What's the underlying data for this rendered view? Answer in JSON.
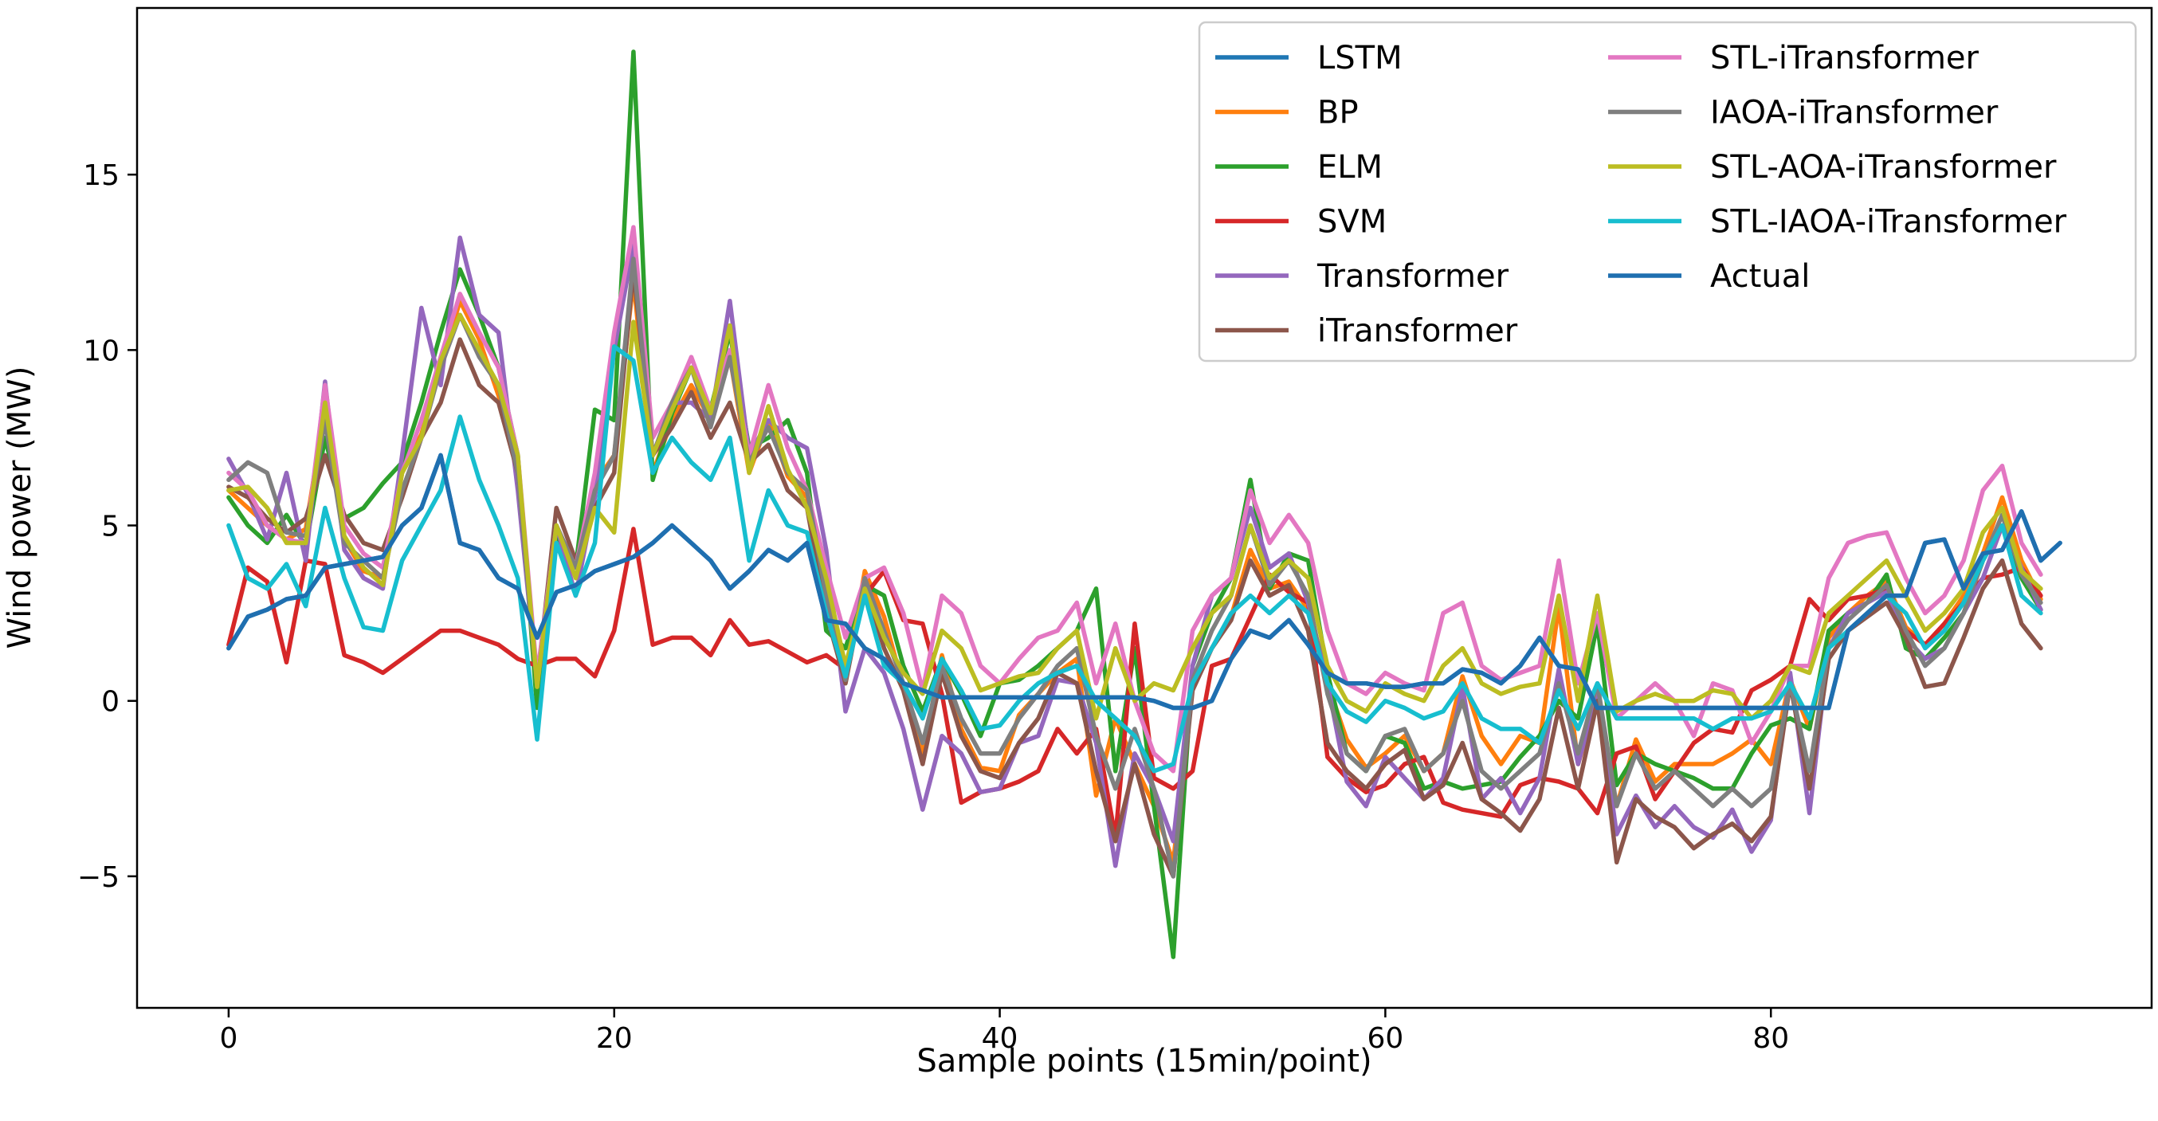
{
  "chart_data": {
    "type": "line",
    "title": "",
    "xlabel": "Sample points (15min/point)",
    "ylabel": "Wind power (MW)",
    "xlim": [
      -4.75,
      99.75
    ],
    "ylim": [
      -8.75,
      19.75
    ],
    "xticks": [
      0,
      20,
      40,
      60,
      80
    ],
    "yticks": [
      -5,
      0,
      5,
      10,
      15
    ],
    "xtick_labels": [
      "0",
      "20",
      "40",
      "60",
      "80"
    ],
    "ytick_labels": [
      "−5",
      "0",
      "5",
      "10",
      "15"
    ],
    "legend_position": "top-right",
    "legend_columns": 2,
    "series": [
      {
        "name": "LSTM",
        "color": "#1f77b4",
        "y": [
          1.5,
          2.4,
          2.6,
          2.9,
          3.0,
          3.8,
          3.9,
          4.0,
          4.1,
          5.0,
          5.5,
          7.0,
          4.5,
          4.3,
          3.5,
          3.2,
          1.8,
          3.1,
          3.3,
          3.7,
          3.9,
          4.1,
          4.5,
          5.0,
          4.5,
          4.0,
          3.2,
          3.7,
          4.3,
          4.0,
          4.5,
          2.3,
          2.2,
          1.5,
          1.2,
          0.5,
          0.3,
          0.1,
          0.1,
          0.1,
          0.1,
          0.1,
          0.1,
          0.1,
          0.1,
          0.1,
          0.1,
          0.1,
          0.0,
          -0.2,
          -0.2,
          0.0,
          1.2,
          2.0,
          1.8,
          2.3,
          1.6,
          0.8,
          0.5,
          0.5,
          0.4,
          0.4,
          0.5,
          0.5,
          0.9,
          0.8,
          0.5,
          1.0,
          1.8,
          1.0,
          0.9,
          -0.2,
          -0.2,
          -0.2,
          -0.2,
          -0.2,
          -0.2,
          -0.2,
          -0.2,
          -0.2,
          -0.2,
          -0.2,
          -0.2,
          -0.2,
          2.0,
          2.5,
          3.0,
          3.0,
          4.5,
          4.6,
          3.2,
          4.2,
          4.3,
          5.4,
          4.0,
          4.5
        ]
      },
      {
        "name": "BP",
        "color": "#ff7f0e",
        "y": [
          6.0,
          5.5,
          5.0,
          4.6,
          4.9,
          8.4,
          4.6,
          3.7,
          3.5,
          6.5,
          7.6,
          9.5,
          11.4,
          10.3,
          8.7,
          6.8,
          0.5,
          4.8,
          3.8,
          6.2,
          7.0,
          12.0,
          6.5,
          8.0,
          9.0,
          8.0,
          9.8,
          6.5,
          8.0,
          6.4,
          5.8,
          2.8,
          0.6,
          3.7,
          2.4,
          0.4,
          -1.5,
          1.3,
          -0.8,
          -1.9,
          -2.0,
          -0.4,
          0.2,
          0.8,
          1.2,
          -2.7,
          -0.5,
          -1.8,
          -3.0,
          -4.6,
          0.5,
          1.5,
          2.4,
          4.3,
          3.2,
          3.4,
          2.6,
          0.5,
          -1.1,
          -1.9,
          -1.5,
          -1.0,
          -2.0,
          -1.5,
          0.7,
          -1.0,
          -1.8,
          -1.0,
          -1.2,
          2.7,
          -1.8,
          0.0,
          -3.0,
          -1.1,
          -2.3,
          -1.8,
          -1.8,
          -1.8,
          -1.5,
          -1.1,
          -1.8,
          0.6,
          -0.8,
          1.8,
          2.5,
          3.0,
          3.4,
          2.1,
          1.6,
          2.2,
          3.0,
          4.2,
          5.8,
          4.0,
          2.9
        ]
      },
      {
        "name": "ELM",
        "color": "#2ca02c",
        "y": [
          5.8,
          5.0,
          4.5,
          5.3,
          4.4,
          7.5,
          5.2,
          5.5,
          6.2,
          6.8,
          8.5,
          10.5,
          12.3,
          11.0,
          9.5,
          7.0,
          -0.2,
          4.7,
          3.8,
          8.3,
          8.0,
          18.5,
          6.3,
          8.2,
          9.5,
          8.3,
          10.5,
          7.2,
          7.5,
          8.0,
          6.5,
          2.0,
          1.5,
          3.3,
          3.0,
          1.0,
          -0.3,
          1.2,
          0.2,
          -1.0,
          0.5,
          0.6,
          1.0,
          1.5,
          2.0,
          3.2,
          -2.0,
          1.5,
          -3.0,
          -7.3,
          1.0,
          2.5,
          3.5,
          6.3,
          3.2,
          4.2,
          4.0,
          0.8,
          -1.5,
          -2.0,
          -1.0,
          -1.2,
          -2.5,
          -2.3,
          -2.5,
          -2.4,
          -2.3,
          -1.6,
          -1.0,
          0.0,
          -0.5,
          2.2,
          -2.4,
          -1.5,
          -1.8,
          -2.0,
          -2.2,
          -2.5,
          -2.5,
          -1.5,
          -0.7,
          -0.5,
          -0.8,
          2.0,
          2.5,
          2.8,
          3.6,
          1.5,
          1.2,
          1.8,
          2.5,
          4.0,
          5.0,
          3.5,
          2.6
        ]
      },
      {
        "name": "SVM",
        "color": "#d62728",
        "y": [
          1.6,
          3.8,
          3.4,
          1.1,
          4.0,
          3.9,
          1.3,
          1.1,
          0.8,
          1.2,
          1.6,
          2.0,
          2.0,
          1.8,
          1.6,
          1.2,
          1.0,
          1.2,
          1.2,
          0.7,
          2.0,
          4.9,
          1.6,
          1.8,
          1.8,
          1.3,
          2.3,
          1.6,
          1.7,
          1.4,
          1.1,
          1.3,
          0.9,
          3.0,
          3.7,
          2.3,
          2.2,
          0.2,
          -2.9,
          -2.6,
          -2.5,
          -2.3,
          -2.0,
          -0.8,
          -1.5,
          -0.8,
          -3.9,
          2.2,
          -2.2,
          -2.5,
          -2.0,
          1.0,
          1.2,
          2.4,
          3.6,
          3.1,
          2.8,
          -1.6,
          -2.2,
          -2.6,
          -2.4,
          -1.8,
          -1.6,
          -2.9,
          -3.1,
          -3.2,
          -3.3,
          -2.4,
          -2.2,
          -2.3,
          -2.5,
          -3.2,
          -1.5,
          -1.3,
          -2.8,
          -2.0,
          -1.2,
          -0.8,
          -0.9,
          0.3,
          0.6,
          1.0,
          2.9,
          2.3,
          2.9,
          3.0,
          3.2,
          2.0,
          1.6,
          2.2,
          2.8,
          3.5,
          3.6,
          3.8,
          3.0
        ]
      },
      {
        "name": "Transformer",
        "color": "#9467bd",
        "y": [
          6.9,
          5.9,
          4.6,
          6.5,
          4.0,
          9.1,
          4.3,
          3.5,
          3.2,
          7.0,
          11.2,
          9.0,
          13.2,
          11.0,
          10.5,
          6.0,
          0.5,
          5.0,
          3.0,
          5.8,
          10.0,
          13.0,
          7.0,
          8.5,
          8.5,
          8.0,
          11.4,
          7.0,
          8.0,
          7.5,
          7.2,
          4.3,
          -0.3,
          1.5,
          0.8,
          -0.8,
          -3.1,
          -1.0,
          -1.5,
          -2.6,
          -2.5,
          -1.2,
          -1.0,
          0.6,
          0.5,
          -1.2,
          -4.7,
          -1.5,
          -2.5,
          -4.0,
          1.0,
          3.0,
          3.5,
          5.5,
          3.8,
          4.2,
          2.8,
          0.5,
          -2.3,
          -3.0,
          -1.6,
          -2.2,
          -2.8,
          -2.2,
          0.4,
          -2.8,
          -2.2,
          -3.2,
          -2.2,
          0.9,
          -1.8,
          0.2,
          -3.8,
          -2.7,
          -3.6,
          -3.0,
          -3.6,
          -3.9,
          -3.1,
          -4.3,
          -3.4,
          0.8,
          -3.2,
          1.5,
          2.5,
          2.8,
          3.1,
          1.8,
          1.2,
          1.5,
          2.5,
          3.5,
          5.0,
          3.8,
          2.6
        ]
      },
      {
        "name": "iTransformer",
        "color": "#8c564b",
        "y": [
          6.1,
          5.8,
          5.2,
          4.8,
          5.2,
          7.0,
          5.3,
          4.5,
          4.3,
          5.8,
          7.5,
          8.5,
          10.3,
          9.0,
          8.5,
          6.5,
          0.5,
          5.5,
          4.0,
          5.5,
          6.5,
          12.3,
          7.0,
          7.8,
          8.8,
          7.5,
          8.5,
          6.8,
          7.3,
          6.0,
          5.5,
          2.5,
          0.5,
          3.3,
          1.5,
          0.3,
          -1.8,
          0.8,
          -1.0,
          -2.0,
          -2.2,
          -1.2,
          -0.5,
          0.8,
          0.5,
          -2.0,
          -4.0,
          -1.8,
          -3.8,
          -5.0,
          0.3,
          1.5,
          2.3,
          4.0,
          3.0,
          3.3,
          2.0,
          -1.2,
          -2.0,
          -2.5,
          -1.8,
          -1.4,
          -2.8,
          -2.4,
          -1.2,
          -2.8,
          -3.2,
          -3.7,
          -2.8,
          -0.2,
          -2.5,
          0.0,
          -4.6,
          -2.8,
          -3.3,
          -3.6,
          -4.2,
          -3.8,
          -3.5,
          -4.0,
          -3.3,
          0.5,
          -2.5,
          1.2,
          2.0,
          2.4,
          2.8,
          1.8,
          0.4,
          0.5,
          1.8,
          3.2,
          4.0,
          2.2,
          1.5
        ]
      },
      {
        "name": "STL-iTransformer",
        "color": "#e377c2",
        "y": [
          6.5,
          6.0,
          5.0,
          4.6,
          4.5,
          9.0,
          5.0,
          4.2,
          3.8,
          6.5,
          8.0,
          9.8,
          11.6,
          10.5,
          9.5,
          7.0,
          0.7,
          5.0,
          3.8,
          6.5,
          10.5,
          13.5,
          7.5,
          8.5,
          9.8,
          8.3,
          10.0,
          7.0,
          9.0,
          7.2,
          6.0,
          3.8,
          1.8,
          3.5,
          3.8,
          2.5,
          0.3,
          3.0,
          2.5,
          1.0,
          0.5,
          1.2,
          1.8,
          2.0,
          2.8,
          0.5,
          2.2,
          0.0,
          -1.5,
          -2.0,
          2.0,
          3.0,
          3.5,
          6.0,
          4.5,
          5.3,
          4.5,
          2.0,
          0.5,
          0.2,
          0.8,
          0.5,
          0.3,
          2.5,
          2.8,
          1.0,
          0.6,
          0.8,
          1.0,
          4.0,
          0.5,
          2.5,
          -0.5,
          0.0,
          0.5,
          0.0,
          -1.0,
          0.5,
          0.3,
          -1.2,
          -0.3,
          1.0,
          1.0,
          3.5,
          4.5,
          4.7,
          4.8,
          3.5,
          2.5,
          3.0,
          4.0,
          6.0,
          6.7,
          4.5,
          3.6
        ]
      },
      {
        "name": "IAOA-iTransformer",
        "color": "#7f7f7f",
        "y": [
          6.3,
          6.8,
          6.5,
          4.8,
          4.7,
          8.0,
          4.5,
          4.0,
          3.5,
          6.0,
          7.5,
          9.5,
          11.0,
          9.8,
          9.0,
          6.5,
          0.4,
          5.0,
          3.8,
          6.0,
          7.0,
          12.6,
          7.0,
          8.5,
          9.5,
          7.8,
          9.8,
          6.8,
          7.8,
          6.5,
          6.0,
          3.0,
          0.6,
          3.5,
          2.0,
          0.5,
          -1.2,
          1.0,
          -0.5,
          -1.5,
          -1.5,
          -0.5,
          0.2,
          1.0,
          1.5,
          -1.0,
          -2.5,
          -0.8,
          -2.5,
          -5.0,
          0.6,
          2.0,
          3.0,
          5.0,
          3.3,
          4.0,
          3.0,
          0.2,
          -1.5,
          -2.0,
          -1.0,
          -0.8,
          -2.0,
          -1.5,
          0.0,
          -2.0,
          -2.5,
          -2.0,
          -1.5,
          0.5,
          -1.5,
          0.5,
          -3.0,
          -1.5,
          -2.5,
          -2.0,
          -2.5,
          -3.0,
          -2.5,
          -3.0,
          -2.5,
          0.5,
          -2.0,
          1.5,
          2.3,
          2.8,
          3.3,
          2.0,
          1.0,
          1.5,
          2.5,
          4.0,
          5.3,
          3.6,
          2.8
        ]
      },
      {
        "name": "STL-AOA-iTransformer",
        "color": "#bcbd22",
        "y": [
          6.0,
          6.1,
          5.5,
          4.5,
          4.5,
          8.5,
          4.7,
          3.8,
          3.3,
          6.5,
          7.5,
          9.7,
          11.0,
          10.0,
          9.0,
          7.0,
          0.4,
          5.0,
          3.5,
          5.5,
          4.8,
          10.8,
          7.0,
          8.3,
          9.5,
          8.2,
          10.7,
          6.5,
          8.4,
          6.6,
          5.5,
          3.5,
          1.0,
          3.2,
          1.8,
          0.8,
          0.2,
          2.0,
          1.5,
          0.3,
          0.5,
          0.7,
          0.8,
          1.5,
          2.0,
          -0.5,
          1.5,
          0.0,
          0.5,
          0.3,
          1.5,
          2.5,
          3.0,
          5.0,
          3.5,
          4.0,
          3.5,
          1.0,
          0.0,
          -0.3,
          0.5,
          0.2,
          0.0,
          1.0,
          1.5,
          0.5,
          0.2,
          0.4,
          0.5,
          3.0,
          0.0,
          3.0,
          -0.3,
          0.0,
          0.2,
          0.0,
          0.0,
          0.3,
          0.2,
          -0.5,
          0.0,
          1.0,
          0.8,
          2.5,
          3.0,
          3.5,
          4.0,
          3.0,
          2.0,
          2.5,
          3.2,
          4.8,
          5.5,
          3.7,
          3.2
        ]
      },
      {
        "name": "STL-IAOA-iTransformer",
        "color": "#17becf",
        "y": [
          5.0,
          3.5,
          3.2,
          3.9,
          2.7,
          5.5,
          3.5,
          2.1,
          2.0,
          4.0,
          5.0,
          6.0,
          8.1,
          6.3,
          5.0,
          3.5,
          -1.1,
          4.5,
          3.0,
          4.5,
          10.1,
          9.7,
          6.5,
          7.5,
          6.8,
          6.3,
          7.5,
          4.0,
          6.0,
          5.0,
          4.8,
          2.5,
          0.7,
          3.0,
          1.0,
          0.5,
          -0.5,
          1.2,
          0.3,
          -0.8,
          -0.7,
          0.0,
          0.5,
          0.8,
          1.0,
          0.0,
          -0.5,
          -1.0,
          -2.0,
          -1.8,
          0.5,
          1.5,
          2.5,
          3.0,
          2.5,
          3.0,
          2.5,
          0.5,
          -0.3,
          -0.6,
          0.0,
          -0.2,
          -0.5,
          -0.3,
          0.5,
          -0.5,
          -0.8,
          -0.8,
          -1.2,
          0.3,
          -0.8,
          0.5,
          -0.5,
          -0.5,
          -0.5,
          -0.5,
          -0.5,
          -0.8,
          -0.5,
          -0.5,
          -0.3,
          0.5,
          -0.5,
          1.5,
          2.0,
          2.5,
          3.0,
          2.5,
          1.5,
          2.0,
          2.8,
          4.0,
          5.0,
          3.0,
          2.5
        ]
      },
      {
        "name": "Actual",
        "color": "#1f6fb0",
        "y": [
          1.5,
          2.4,
          2.6,
          2.9,
          3.0,
          3.8,
          3.9,
          4.0,
          4.1,
          5.0,
          5.5,
          7.0,
          4.5,
          4.3,
          3.5,
          3.2,
          1.8,
          3.1,
          3.3,
          3.7,
          3.9,
          4.1,
          4.5,
          5.0,
          4.5,
          4.0,
          3.2,
          3.7,
          4.3,
          4.0,
          4.5,
          2.3,
          2.2,
          1.5,
          1.2,
          0.5,
          0.3,
          0.1,
          0.1,
          0.1,
          0.1,
          0.1,
          0.1,
          0.1,
          0.1,
          0.1,
          0.1,
          0.1,
          0.0,
          -0.2,
          -0.2,
          0.0,
          1.2,
          2.0,
          1.8,
          2.3,
          1.6,
          0.8,
          0.5,
          0.5,
          0.4,
          0.4,
          0.5,
          0.5,
          0.9,
          0.8,
          0.5,
          1.0,
          1.8,
          1.0,
          0.9,
          -0.2,
          -0.2,
          -0.2,
          -0.2,
          -0.2,
          -0.2,
          -0.2,
          -0.2,
          -0.2,
          -0.2,
          -0.2,
          -0.2,
          -0.2,
          2.0,
          2.5,
          3.0,
          3.0,
          4.5,
          4.6,
          3.2,
          4.2,
          4.3,
          5.4,
          4.0,
          4.5
        ]
      }
    ]
  }
}
